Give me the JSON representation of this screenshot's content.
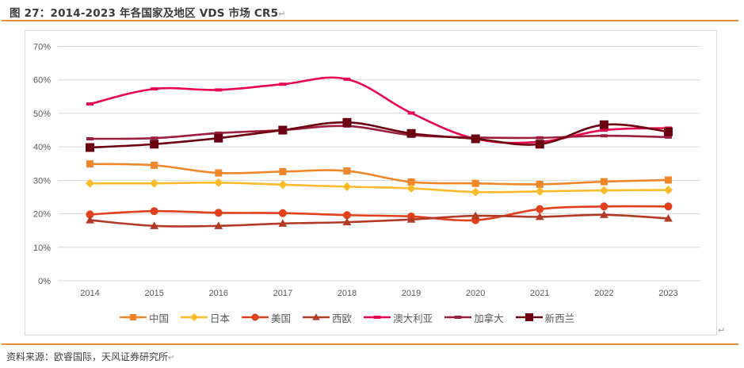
{
  "figure": {
    "title": "图 27：2014-2023 年各国家及地区 VDS 市场 CR5",
    "return_mark": "↵",
    "source": "资料来源：欧睿国际，天风证券研究所"
  },
  "chart_data": {
    "type": "line",
    "title": "",
    "xlabel": "",
    "ylabel": "",
    "x": [
      "2014",
      "2015",
      "2016",
      "2017",
      "2018",
      "2019",
      "2020",
      "2021",
      "2022",
      "2023"
    ],
    "ylim": [
      0,
      70
    ],
    "yticks": [
      0,
      10,
      20,
      30,
      40,
      50,
      60,
      70
    ],
    "ytick_labels": [
      "0%",
      "10%",
      "20%",
      "30%",
      "40%",
      "50%",
      "60%",
      "70%"
    ],
    "grid": true,
    "smooth": true,
    "legend_position": "bottom",
    "series": [
      {
        "name": "中国",
        "color": "#f0862a",
        "marker": "square",
        "values": [
          34.9,
          34.5,
          32.2,
          32.6,
          32.8,
          29.5,
          29.1,
          28.8,
          29.6,
          30.1
        ]
      },
      {
        "name": "日本",
        "color": "#fbbb2c",
        "marker": "diamond",
        "values": [
          29.1,
          29.1,
          29.3,
          28.7,
          28.1,
          27.6,
          26.5,
          26.7,
          27.0,
          27.1
        ]
      },
      {
        "name": "美国",
        "color": "#e0401c",
        "marker": "circle",
        "values": [
          19.8,
          20.8,
          20.3,
          20.2,
          19.6,
          19.2,
          18.1,
          21.4,
          22.2,
          22.2
        ]
      },
      {
        "name": "西欧",
        "color": "#b33a26",
        "marker": "triangle",
        "values": [
          18.1,
          16.4,
          16.4,
          17.1,
          17.5,
          18.3,
          19.4,
          19.1,
          19.7,
          18.6
        ]
      },
      {
        "name": "澳大利亚",
        "color": "#e8064f",
        "marker": "dash",
        "values": [
          52.8,
          57.3,
          57.0,
          58.7,
          60.2,
          50.1,
          42.4,
          41.5,
          45.0,
          45.6
        ]
      },
      {
        "name": "加拿大",
        "color": "#9c1f3f",
        "marker": "dash",
        "values": [
          42.4,
          42.6,
          44.1,
          45.0,
          46.2,
          43.5,
          42.8,
          42.7,
          43.3,
          42.9
        ]
      },
      {
        "name": "新西兰",
        "color": "#6b0011",
        "marker": "square",
        "values": [
          39.8,
          40.8,
          42.6,
          45.0,
          47.3,
          44.0,
          42.4,
          40.8,
          46.6,
          44.5
        ]
      }
    ]
  }
}
